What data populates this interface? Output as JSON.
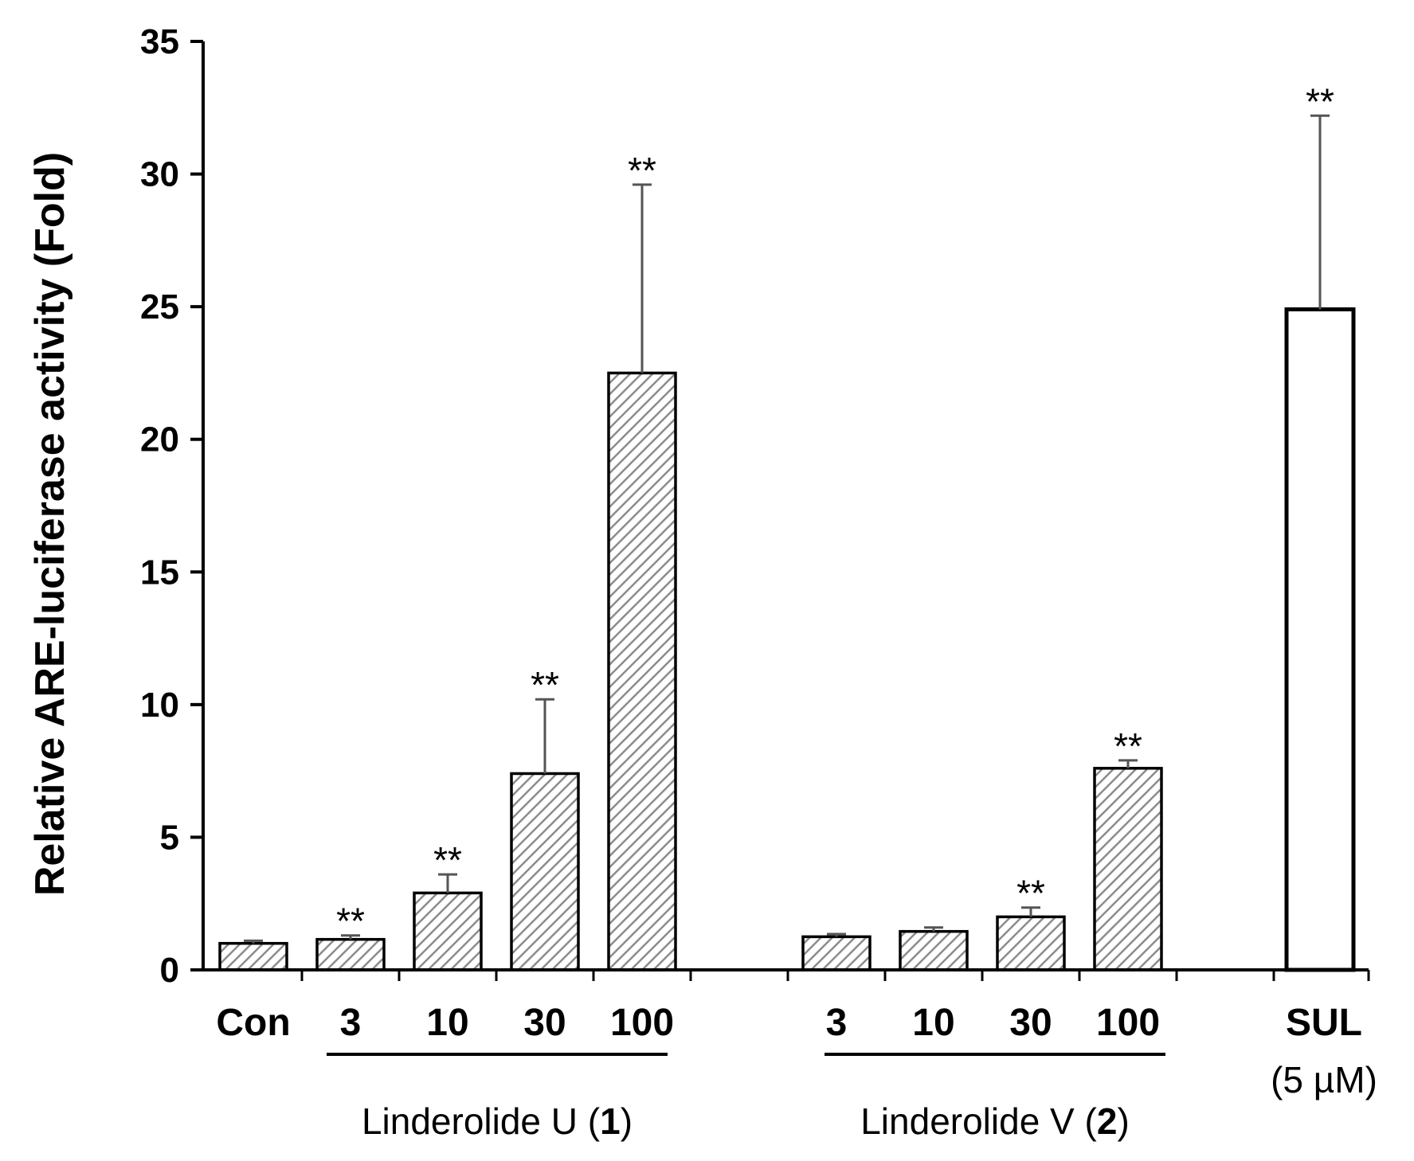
{
  "chart_data": {
    "type": "bar",
    "ylabel": "Relative ARE-luciferase activity (Fold)",
    "ylim": [
      0,
      35
    ],
    "yticks": [
      "0",
      "5",
      "10",
      "15",
      "20",
      "25",
      "30",
      "35"
    ],
    "grid": false,
    "legend": "none",
    "bars": [
      {
        "label": "Con",
        "value": 1.0,
        "error": 0.1,
        "sig": "",
        "fill": "hatched",
        "group": 0
      },
      {
        "label": "3",
        "value": 1.15,
        "error": 0.15,
        "sig": "**",
        "fill": "hatched",
        "group": 1
      },
      {
        "label": "10",
        "value": 2.9,
        "error": 0.7,
        "sig": "**",
        "fill": "hatched",
        "group": 1
      },
      {
        "label": "30",
        "value": 7.4,
        "error": 2.8,
        "sig": "**",
        "fill": "hatched",
        "group": 1
      },
      {
        "label": "100",
        "value": 22.5,
        "error": 7.1,
        "sig": "**",
        "fill": "hatched",
        "group": 1
      },
      {
        "label": "3",
        "value": 1.25,
        "error": 0.1,
        "sig": "",
        "fill": "hatched",
        "group": 2
      },
      {
        "label": "10",
        "value": 1.45,
        "error": 0.15,
        "sig": "",
        "fill": "hatched",
        "group": 2
      },
      {
        "label": "30",
        "value": 2.0,
        "error": 0.35,
        "sig": "**",
        "fill": "hatched",
        "group": 2
      },
      {
        "label": "100",
        "value": 7.6,
        "error": 0.3,
        "sig": "**",
        "fill": "hatched",
        "group": 2
      },
      {
        "label": "SUL",
        "value": 24.9,
        "error": 7.3,
        "sig": "**",
        "fill": "open",
        "group": 3
      }
    ],
    "groups": [
      {
        "name": "Linderolide U (",
        "bold": "1",
        "close": ")"
      },
      {
        "name": "Linderolide V (",
        "bold": "2",
        "close": ")"
      }
    ],
    "sul_sublabel": "(5 µM)",
    "colors": {
      "bar_edge": "#000000",
      "hatch": "#8c8c8c",
      "error_bar": "#555555"
    }
  }
}
